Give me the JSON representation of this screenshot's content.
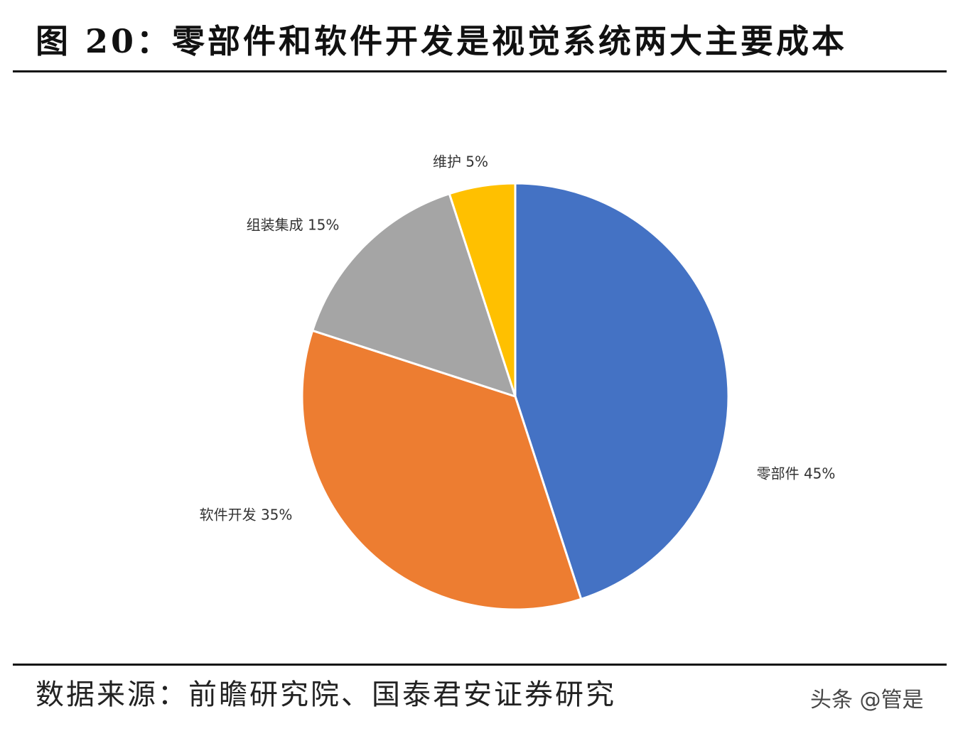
{
  "header": {
    "title": "图 20：零部件和软件开发是视觉系统两大主要成本"
  },
  "chart_data": {
    "type": "pie",
    "categories": [
      "零部件",
      "软件开发",
      "组装集成",
      "维护"
    ],
    "values": [
      45,
      35,
      15,
      5
    ],
    "unit": "%",
    "labels": [
      "零部件 45%",
      "软件开发 35%",
      "组装集成 15%",
      "维护 5%"
    ],
    "colors": [
      "#4472C4",
      "#ED7D31",
      "#A5A5A5",
      "#FFC000"
    ],
    "start": "12 o'clock, clockwise"
  },
  "footer": {
    "source": "数据来源：前瞻研究院、国泰君安证券研究",
    "watermark": "头条 @管是"
  }
}
